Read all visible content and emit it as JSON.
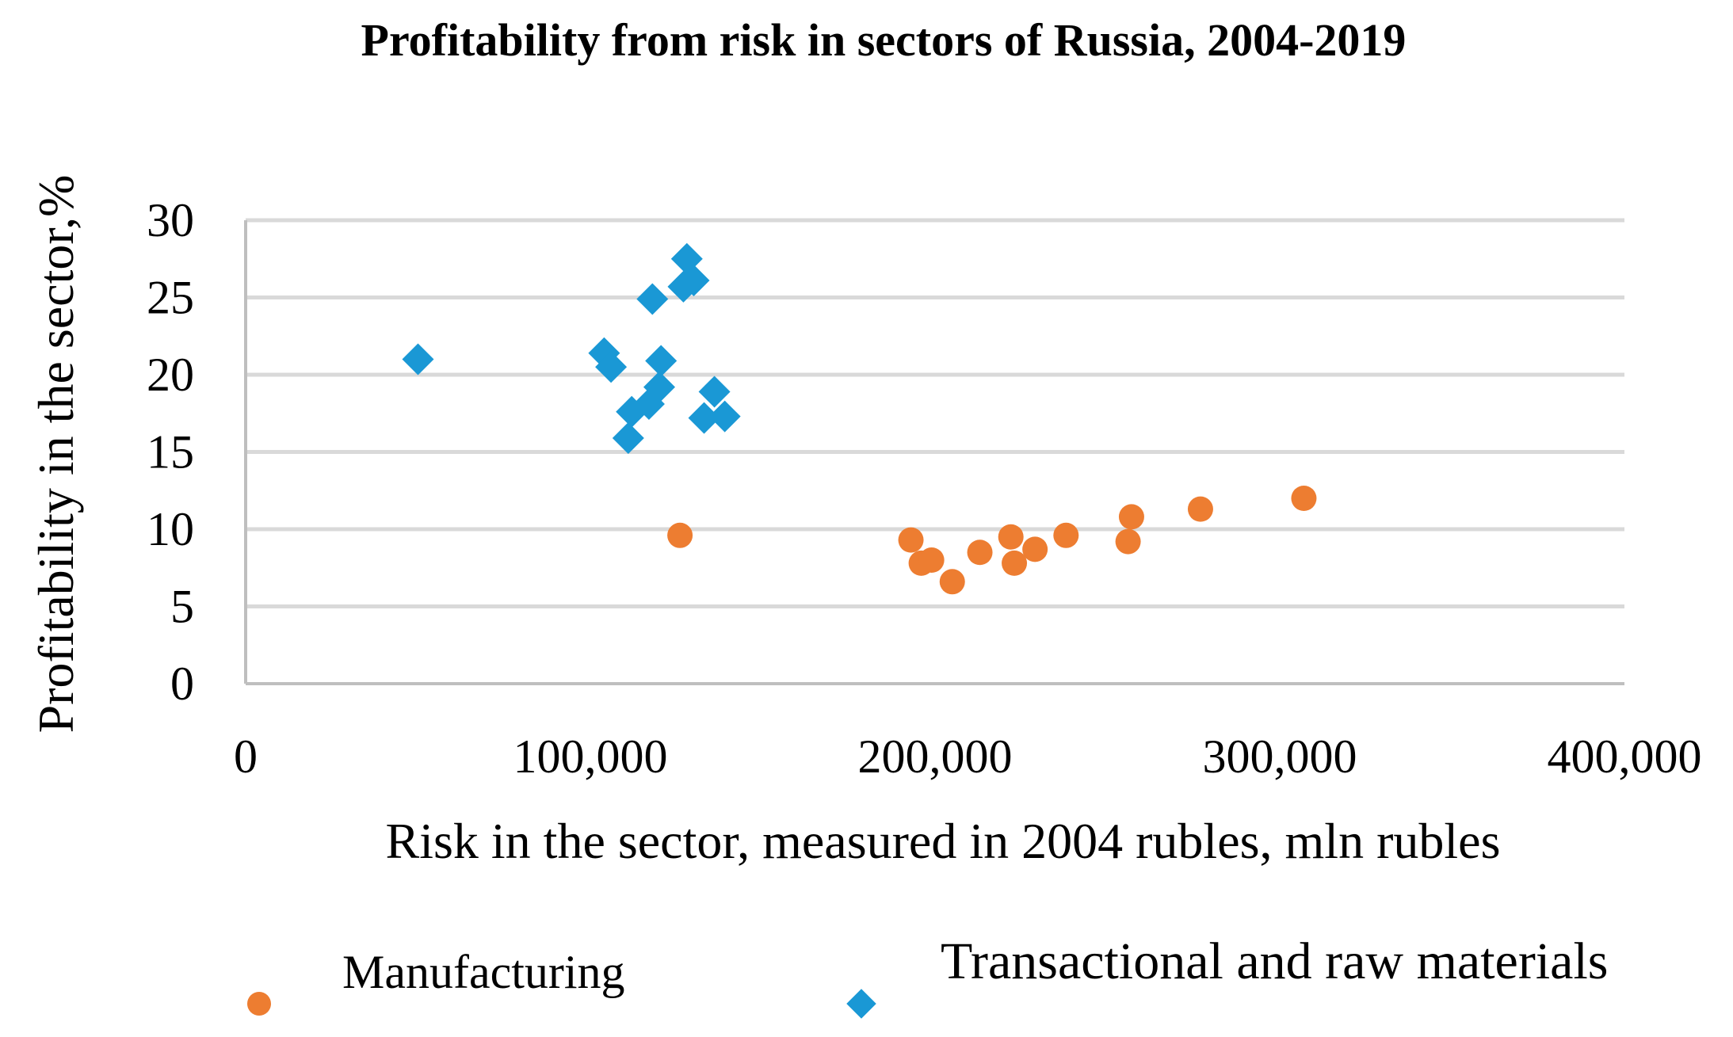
{
  "chart_data": {
    "type": "scatter",
    "title": "Profitability from risk in sectors of Russia, 2004-2019",
    "xlabel": "Risk in the sector, measured in 2004 rubles, mln rubles",
    "ylabel": "Profitability in the sector,%",
    "xlim": [
      0,
      400000
    ],
    "ylim": [
      0,
      30
    ],
    "x_ticks": [
      "0",
      "100,000",
      "200,000",
      "300,000",
      "400,000"
    ],
    "y_ticks": [
      "0",
      "5",
      "10",
      "15",
      "20",
      "25",
      "30"
    ],
    "grid": "horizontal",
    "legend_position": "bottom",
    "series": [
      {
        "name": "Manufacturing",
        "marker": "circle",
        "color": "#ED7D31",
        "points": [
          {
            "x": 126000,
            "y": 9.6
          },
          {
            "x": 193000,
            "y": 9.3
          },
          {
            "x": 196000,
            "y": 7.8
          },
          {
            "x": 199000,
            "y": 8.0
          },
          {
            "x": 205000,
            "y": 6.6
          },
          {
            "x": 213000,
            "y": 8.5
          },
          {
            "x": 222000,
            "y": 9.5
          },
          {
            "x": 223000,
            "y": 7.8
          },
          {
            "x": 229000,
            "y": 8.7
          },
          {
            "x": 238000,
            "y": 9.6
          },
          {
            "x": 256000,
            "y": 9.2
          },
          {
            "x": 257000,
            "y": 10.8
          },
          {
            "x": 277000,
            "y": 11.3
          },
          {
            "x": 307000,
            "y": 12.0
          }
        ]
      },
      {
        "name": "Transactional and raw materials",
        "marker": "diamond",
        "color": "#1A98D5",
        "points": [
          {
            "x": 50000,
            "y": 21.0
          },
          {
            "x": 104000,
            "y": 21.4
          },
          {
            "x": 106000,
            "y": 20.5
          },
          {
            "x": 111000,
            "y": 15.9
          },
          {
            "x": 112000,
            "y": 17.6
          },
          {
            "x": 117000,
            "y": 18.1
          },
          {
            "x": 118000,
            "y": 24.9
          },
          {
            "x": 120000,
            "y": 19.2
          },
          {
            "x": 120500,
            "y": 20.9
          },
          {
            "x": 127000,
            "y": 25.7
          },
          {
            "x": 128000,
            "y": 27.5
          },
          {
            "x": 130000,
            "y": 26.1
          },
          {
            "x": 133000,
            "y": 17.2
          },
          {
            "x": 136000,
            "y": 18.9
          },
          {
            "x": 139000,
            "y": 17.3
          }
        ]
      }
    ]
  }
}
